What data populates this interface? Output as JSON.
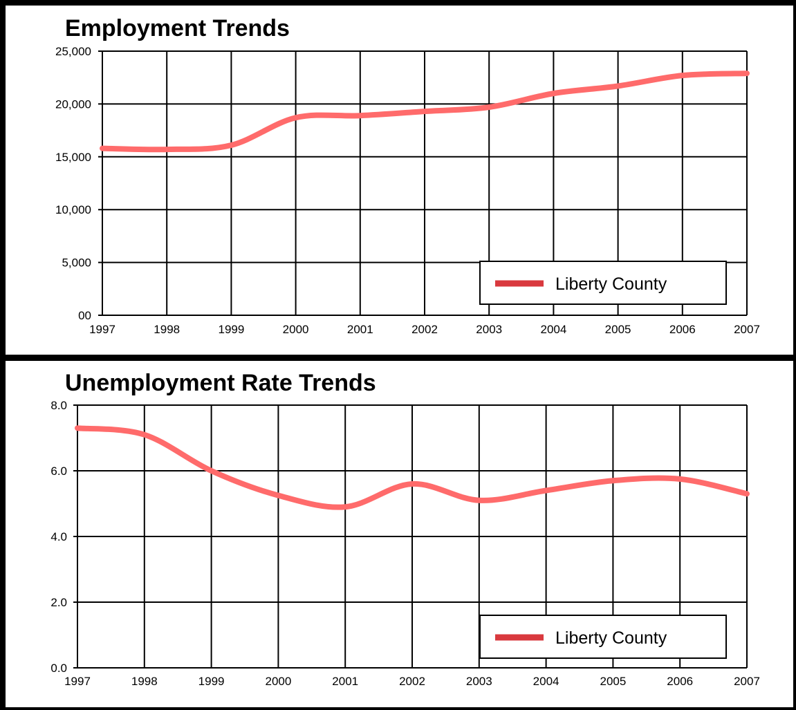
{
  "chart_data": [
    {
      "type": "line",
      "title": "Employment Trends",
      "xlabel": "",
      "ylabel": "",
      "x": [
        "1997",
        "1998",
        "1999",
        "2000",
        "2001",
        "2002",
        "2003",
        "2004",
        "2005",
        "2006",
        "2007"
      ],
      "y_ticks": [
        "00",
        "5,000",
        "10,000",
        "15,000",
        "20,000",
        "25,000"
      ],
      "ylim": [
        0,
        25000
      ],
      "grid": true,
      "legend_position": "bottom-right",
      "series": [
        {
          "name": "Liberty County",
          "color": "#ff6b6b",
          "values": [
            15800,
            15700,
            16100,
            18700,
            18900,
            19300,
            19700,
            21000,
            21700,
            22700,
            22900
          ]
        }
      ]
    },
    {
      "type": "line",
      "title": "Unemployment Rate Trends",
      "xlabel": "",
      "ylabel": "",
      "x": [
        "1997",
        "1998",
        "1999",
        "2000",
        "2001",
        "2002",
        "2003",
        "2004",
        "2005",
        "2006",
        "2007"
      ],
      "y_ticks": [
        "0.0",
        "2.0",
        "4.0",
        "6.0",
        "8.0"
      ],
      "ylim": [
        0,
        8
      ],
      "grid": true,
      "legend_position": "bottom-right",
      "series": [
        {
          "name": "Liberty County",
          "color": "#ff6b6b",
          "values": [
            7.3,
            7.1,
            6.0,
            5.25,
            4.9,
            5.6,
            5.1,
            5.4,
            5.7,
            5.75,
            5.3
          ]
        }
      ]
    }
  ],
  "legend_swatch_color": "#d9393e"
}
